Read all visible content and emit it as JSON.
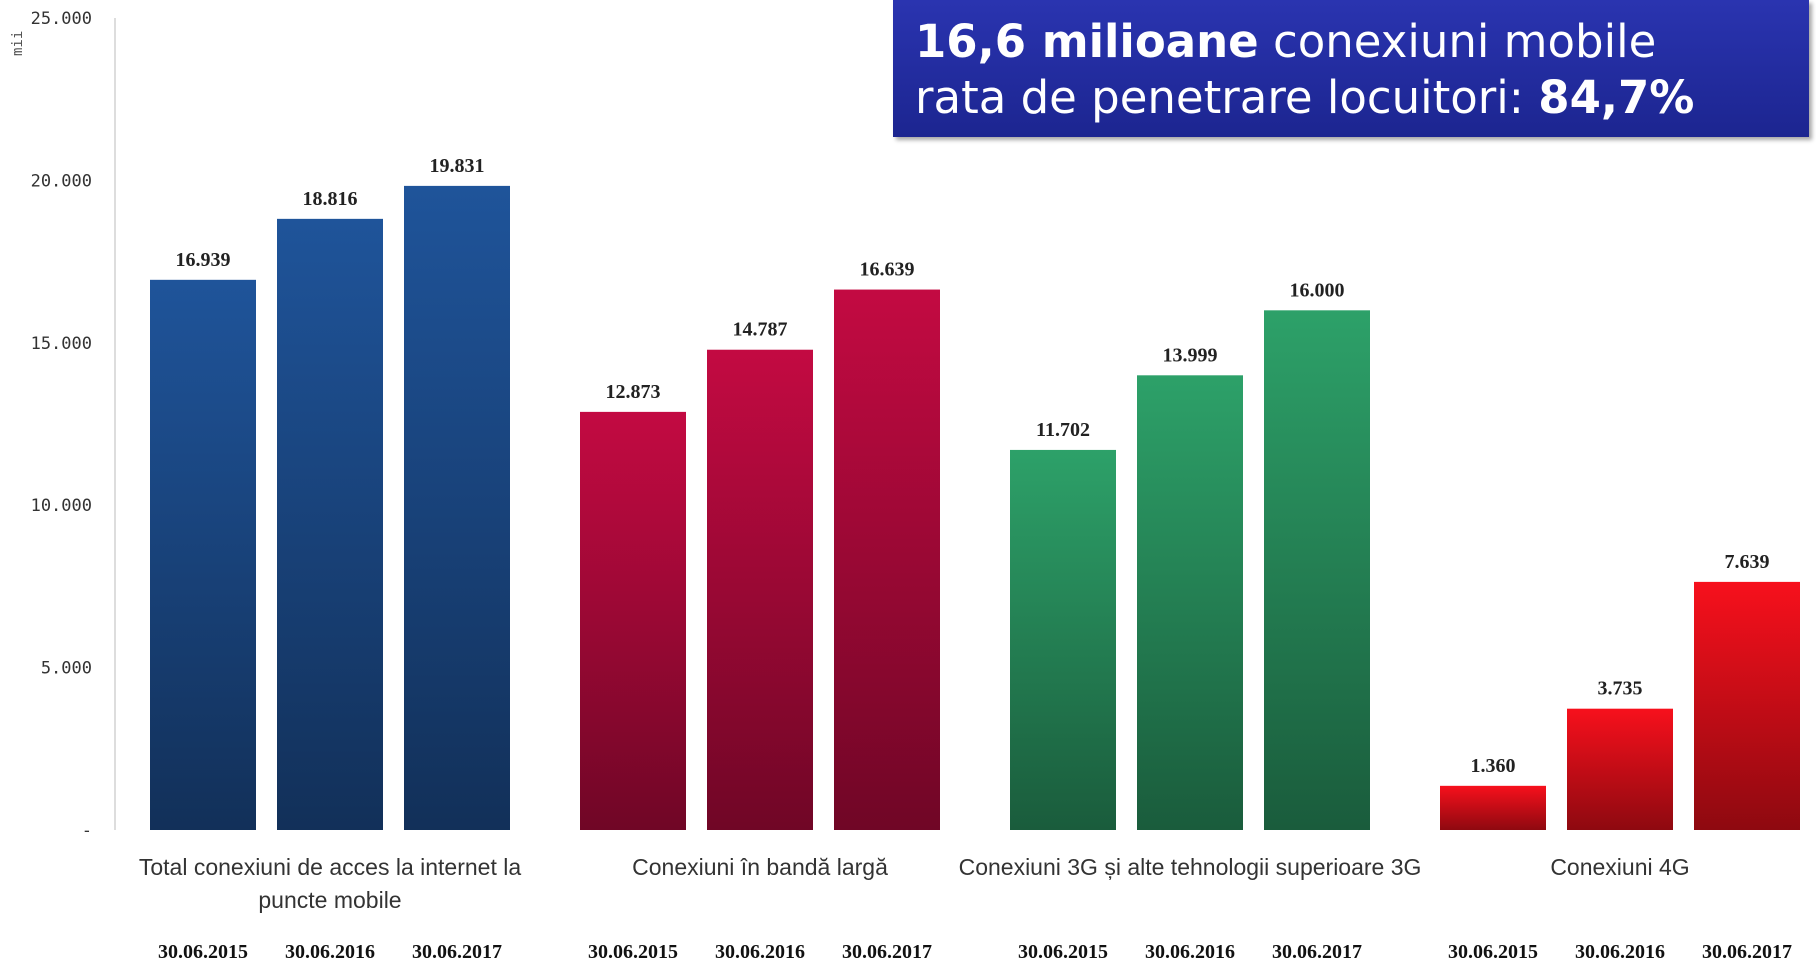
{
  "callout": {
    "line1_bold": "16,6 milioane",
    "line1_rest": " conexiuni mobile",
    "line2_rest": "rata de penetrare locuitori: ",
    "line2_bold": "84,7%"
  },
  "chart_data": {
    "type": "bar",
    "unit_label": "mii",
    "ylim": [
      0,
      25000
    ],
    "yticks": [
      {
        "value": 0,
        "label": "-"
      },
      {
        "value": 5000,
        "label": "5.000"
      },
      {
        "value": 10000,
        "label": "10.000"
      },
      {
        "value": 15000,
        "label": "15.000"
      },
      {
        "value": 20000,
        "label": "20.000"
      },
      {
        "value": 25000,
        "label": "25.000"
      }
    ],
    "groups": [
      {
        "category_lines": [
          "Total conexiuni de acces la internet la",
          "puncte mobile"
        ],
        "color": "#1d4e8f",
        "bars": [
          {
            "date": "30.06.2015",
            "value": 16939,
            "label": "16.939"
          },
          {
            "date": "30.06.2016",
            "value": 18816,
            "label": "18.816"
          },
          {
            "date": "30.06.2017",
            "value": 19831,
            "label": "19.831"
          }
        ]
      },
      {
        "category_lines": [
          "Conexiuni în bandă largă"
        ],
        "color": "#b5093d",
        "bars": [
          {
            "date": "30.06.2015",
            "value": 12873,
            "label": "12.873"
          },
          {
            "date": "30.06.2016",
            "value": 14787,
            "label": "14.787"
          },
          {
            "date": "30.06.2017",
            "value": 16639,
            "label": "16.639"
          }
        ]
      },
      {
        "category_lines": [
          "Conexiuni 3G și alte tehnologii superioare 3G"
        ],
        "color": "#2a9561",
        "bars": [
          {
            "date": "30.06.2015",
            "value": 11702,
            "label": "11.702"
          },
          {
            "date": "30.06.2016",
            "value": 13999,
            "label": "13.999"
          },
          {
            "date": "30.06.2017",
            "value": 16000,
            "label": "16.000"
          }
        ]
      },
      {
        "category_lines": [
          "Conexiuni 4G"
        ],
        "color": "#e50f1a",
        "bars": [
          {
            "date": "30.06.2015",
            "value": 1360,
            "label": "1.360"
          },
          {
            "date": "30.06.2016",
            "value": 3735,
            "label": "3.735"
          },
          {
            "date": "30.06.2017",
            "value": 7639,
            "label": "7.639"
          }
        ]
      }
    ]
  }
}
